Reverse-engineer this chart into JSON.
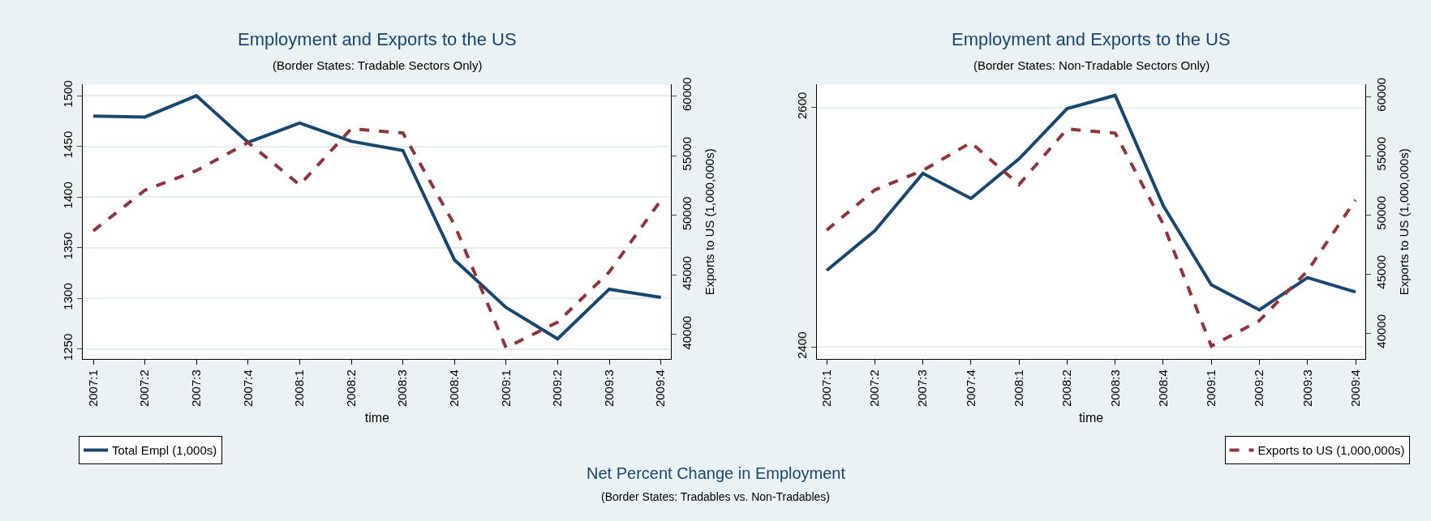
{
  "chart_data": [
    {
      "type": "line",
      "title": "Employment and Exports to the US",
      "subtitle": "(Border States: Tradable Sectors Only)",
      "xlabel": "time",
      "y2label": "Exports to US (1,000,000s)",
      "categories": [
        "2007:1",
        "2007:2",
        "2007:3",
        "2007:4",
        "2008:1",
        "2008:2",
        "2008:3",
        "2008:4",
        "2009:1",
        "2009:2",
        "2009:3",
        "2009:4"
      ],
      "series": [
        {
          "name": "Total Empl (1,000s)",
          "color": "#1a476f",
          "line_style": "solid",
          "values": [
            1480,
            1479,
            1500,
            1454,
            1473,
            1455,
            1446,
            1338,
            1291,
            1260,
            1309,
            1301
          ]
        },
        {
          "color": "#90353b",
          "line_style": "dashed",
          "axis": "y2",
          "values": [
            48700,
            52100,
            53750,
            56100,
            52550,
            57250,
            56900,
            49200,
            38900,
            41050,
            45250,
            51250
          ]
        }
      ],
      "ylim": [
        1240,
        1511
      ],
      "yticks": [
        1250,
        1300,
        1350,
        1400,
        1450,
        1500
      ],
      "y2lim": [
        37950,
        60950
      ],
      "y2ticks": [
        40000,
        45000,
        50000,
        55000,
        60000
      ],
      "grid": "y",
      "legend": "bottom",
      "annotations": [
        "Net Percent Change in Employment",
        "(Border States: Tradables vs. Non-Tradables)"
      ]
    },
    {
      "type": "line",
      "title": "Employment and Exports to the US",
      "subtitle": "(Border States: Non-Tradable Sectors Only)",
      "xlabel": "time",
      "y2label": "Exports to US (1,000,000s)",
      "categories": [
        "2007:1",
        "2007:2",
        "2007:3",
        "2007:4",
        "2008:1",
        "2008:2",
        "2008:3",
        "2008:4",
        "2009:1",
        "2009:2",
        "2009:3",
        "2009:4"
      ],
      "series": [
        {
          "color": "#1a476f",
          "line_style": "solid",
          "values": [
            2464,
            2497,
            2545,
            2524,
            2557,
            2599,
            2610,
            2518,
            2452,
            2431,
            2458,
            2446
          ]
        },
        {
          "name": "Exports to US (1,000,000s)",
          "color": "#90353b",
          "line_style": "dashed",
          "axis": "y2",
          "values": [
            48700,
            52100,
            53750,
            56100,
            52550,
            57250,
            56900,
            49200,
            38900,
            41050,
            45250,
            51250
          ]
        }
      ],
      "ylim": [
        2390,
        2619
      ],
      "yticks": [
        2400,
        2600
      ],
      "y2lim": [
        37800,
        61000
      ],
      "y2ticks": [
        40000,
        45000,
        50000,
        55000,
        60000
      ],
      "grid": "y",
      "legend": "bottom right"
    }
  ]
}
